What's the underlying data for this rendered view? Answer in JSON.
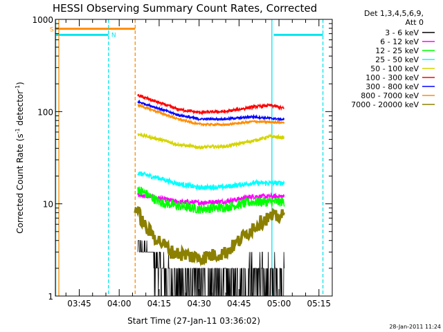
{
  "chart_data": {
    "type": "line",
    "title": "HESSI Observing Summary Count Rates, Corrected",
    "xlabel": "Start Time (27-Jan-11 03:36:02)",
    "ylabel_main": "Corrected Count Rate (s",
    "ylabel_sup1": "-1",
    "ylabel_mid": " detector",
    "ylabel_sup2": "-1",
    "ylabel_end": ")",
    "yscale": "log",
    "ylim": [
      1,
      1000
    ],
    "xlim": [
      "03:36:02",
      "05:20:00"
    ],
    "x_ticks": [
      "03:45",
      "04:00",
      "04:15",
      "04:30",
      "04:45",
      "05:00",
      "05:15"
    ],
    "y_tick_labels": [
      "1",
      "10",
      "100",
      "1000"
    ],
    "legend_header": [
      "Det 1,3,4,5,6,9,",
      "Att 0"
    ],
    "footer_date": "28-Jan-2011 11:24",
    "flags": [
      {
        "label": "S",
        "color": "#ff8c00",
        "level": 790,
        "segments": [
          [
            "03:36:02",
            "04:06:00"
          ]
        ]
      },
      {
        "label": "N",
        "color": "#00e5ee",
        "level": 680,
        "segments": [
          [
            "03:36:02",
            "03:56:00"
          ],
          [
            "04:58:00",
            "05:16:30"
          ]
        ]
      }
    ],
    "vlines": [
      {
        "time": "03:37:20",
        "color": "#ff8c00",
        "style": "solid"
      },
      {
        "time": "03:36:10",
        "color": "#00e5ee",
        "style": "solid"
      },
      {
        "time": "03:56:00",
        "color": "#00e5ee",
        "style": "dashed"
      },
      {
        "time": "04:06:00",
        "color": "#ff8c00",
        "style": "dashed"
      },
      {
        "time": "04:57:20",
        "color": "#00e5ee",
        "style": "solid"
      },
      {
        "time": "05:16:30",
        "color": "#00e5ee",
        "style": "dashed"
      }
    ],
    "series": [
      {
        "name": "3 - 6 keV",
        "color": "#000000",
        "noise": 0.0,
        "quantized": true,
        "points": [
          [
            "04:07",
            3.5
          ],
          [
            "04:15",
            2.0
          ],
          [
            "04:20",
            1.4
          ],
          [
            "04:30",
            1.3
          ],
          [
            "04:40",
            1.3
          ],
          [
            "04:50",
            1.6
          ],
          [
            "05:02",
            1.5
          ]
        ]
      },
      {
        "name": "6 - 12 keV",
        "color": "#ff00ff",
        "noise": 0.06,
        "points": [
          [
            "04:07",
            12.5
          ],
          [
            "04:15",
            11.5
          ],
          [
            "04:22",
            10.5
          ],
          [
            "04:30",
            10.3
          ],
          [
            "04:40",
            10.6
          ],
          [
            "04:50",
            12.0
          ],
          [
            "05:02",
            12.0
          ]
        ]
      },
      {
        "name": "12 - 25 keV",
        "color": "#00ff00",
        "noise": 0.12,
        "points": [
          [
            "04:07",
            14.5
          ],
          [
            "04:15",
            10.5
          ],
          [
            "04:22",
            9.5
          ],
          [
            "04:30",
            8.8
          ],
          [
            "04:40",
            9.2
          ],
          [
            "04:50",
            10.5
          ],
          [
            "05:02",
            10.5
          ]
        ]
      },
      {
        "name": "25 - 50 keV",
        "color": "#00ffff",
        "noise": 0.06,
        "points": [
          [
            "04:07",
            21.5
          ],
          [
            "04:15",
            19.0
          ],
          [
            "04:22",
            16.5
          ],
          [
            "04:30",
            15.0
          ],
          [
            "04:40",
            15.3
          ],
          [
            "04:50",
            16.8
          ],
          [
            "05:02",
            16.8
          ]
        ]
      },
      {
        "name": "50 - 100 keV",
        "color": "#d4d400",
        "noise": 0.04,
        "points": [
          [
            "04:07",
            57
          ],
          [
            "04:15",
            50
          ],
          [
            "04:22",
            44
          ],
          [
            "04:30",
            41
          ],
          [
            "04:40",
            42
          ],
          [
            "04:50",
            48
          ],
          [
            "04:57",
            54
          ],
          [
            "05:02",
            52
          ]
        ]
      },
      {
        "name": "100 - 300 keV",
        "color": "#ff0000",
        "noise": 0.035,
        "points": [
          [
            "04:07",
            150
          ],
          [
            "04:15",
            125
          ],
          [
            "04:22",
            106
          ],
          [
            "04:30",
            98
          ],
          [
            "04:40",
            100
          ],
          [
            "04:50",
            112
          ],
          [
            "04:57",
            117
          ],
          [
            "05:02",
            108
          ]
        ]
      },
      {
        "name": "300 - 800 keV",
        "color": "#0000ff",
        "noise": 0.025,
        "points": [
          [
            "04:07",
            128
          ],
          [
            "04:15",
            108
          ],
          [
            "04:22",
            92
          ],
          [
            "04:30",
            83
          ],
          [
            "04:40",
            83
          ],
          [
            "04:50",
            88
          ],
          [
            "05:02",
            82
          ]
        ]
      },
      {
        "name": "800 - 7000 keV",
        "color": "#ff8c00",
        "noise": 0.025,
        "points": [
          [
            "04:07",
            118
          ],
          [
            "04:15",
            98
          ],
          [
            "04:22",
            83
          ],
          [
            "04:30",
            73
          ],
          [
            "04:40",
            72
          ],
          [
            "04:50",
            78
          ],
          [
            "05:02",
            76
          ]
        ]
      },
      {
        "name": "7000 - 20000 keV",
        "color": "#8b8000",
        "noise": 0.0,
        "stepped": true,
        "points": [
          [
            "04:06",
            9.5
          ],
          [
            "04:10",
            5.5
          ],
          [
            "04:15",
            4.0
          ],
          [
            "04:20",
            3.0
          ],
          [
            "04:30",
            2.6
          ],
          [
            "04:40",
            3.0
          ],
          [
            "04:45",
            4.0
          ],
          [
            "04:50",
            5.5
          ],
          [
            "04:55",
            7.0
          ],
          [
            "05:02",
            7.5
          ]
        ]
      }
    ]
  }
}
